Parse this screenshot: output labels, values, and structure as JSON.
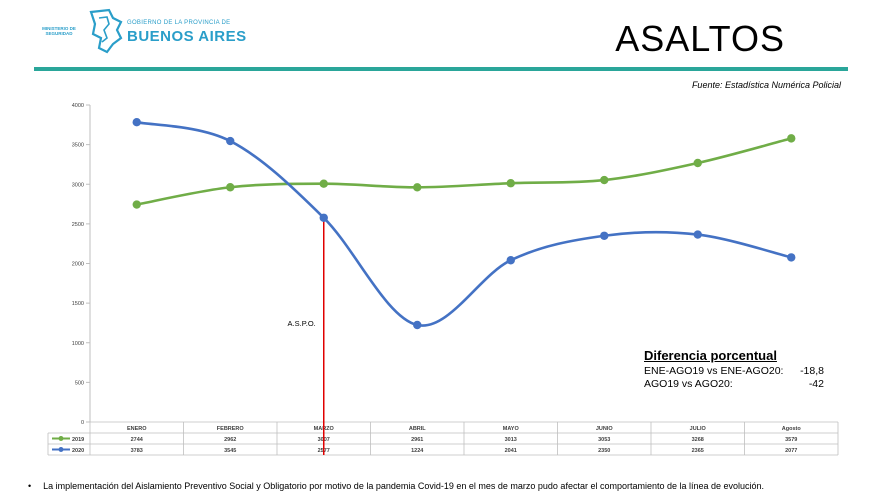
{
  "header": {
    "ministry": "MINISTERIO DE SEGURIDAD",
    "gov_line": "GOBIERNO DE LA PROVINCIA DE",
    "province": "BUENOS AIRES",
    "title": "ASALTOS",
    "source": "Fuente: Estadística Numérica Policial",
    "colors": {
      "brand": "#2a9ec9",
      "rule": "#2aa69a"
    }
  },
  "chart_data": {
    "type": "line",
    "categories": [
      "ENERO",
      "FEBRERO",
      "MARZO",
      "ABRIL",
      "MAYO",
      "JUNIO",
      "JULIO",
      "Agosto"
    ],
    "series": [
      {
        "name": "2019",
        "color": "#70ad47",
        "values": [
          2744,
          2962,
          3007,
          2961,
          3013,
          3053,
          3268,
          3579
        ]
      },
      {
        "name": "2020",
        "color": "#4472c4",
        "values": [
          3783,
          3545,
          2577,
          1224,
          2041,
          2350,
          2365,
          2077
        ]
      }
    ],
    "ylim": [
      0,
      4000
    ],
    "yticks": [
      0,
      500,
      1000,
      1500,
      2000,
      2500,
      3000,
      3500,
      4000
    ],
    "annotation": {
      "label": "A.S.P.O.",
      "category": "MARZO",
      "color": "#e00000"
    },
    "data_table": true
  },
  "diferencia": {
    "title": "Diferencia porcentual",
    "rows": [
      {
        "label": "ENE-AGO19 vs ENE-AGO20:",
        "value": "-18,8"
      },
      {
        "label": "AGO19 vs AGO20:",
        "value": "-42"
      }
    ]
  },
  "footnote": "La implementación del Aislamiento Preventivo Social y Obligatorio por motivo de la pandemia Covid-19 en el mes de marzo pudo afectar el comportamiento de la línea de evolución."
}
